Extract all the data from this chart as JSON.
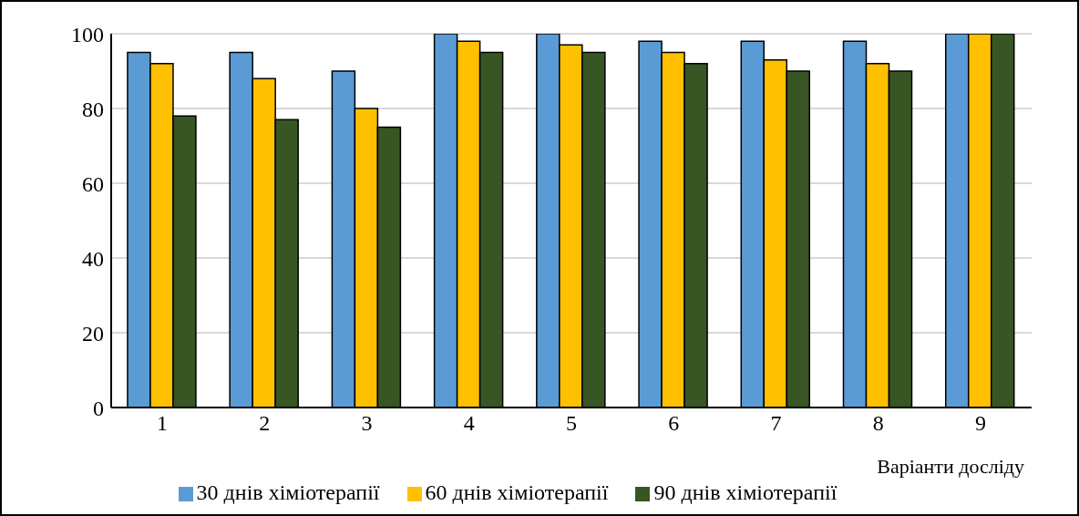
{
  "chart_data": {
    "type": "bar",
    "xlabel": "Варіанти досліду",
    "categories": [
      "1",
      "2",
      "3",
      "4",
      "5",
      "6",
      "7",
      "8",
      "9"
    ],
    "series": [
      {
        "name": "30 днів хіміотерапії",
        "color": "#5b9bd5",
        "values": [
          95,
          95,
          90,
          100,
          100,
          98,
          98,
          98,
          100
        ]
      },
      {
        "name": "60 днів хіміотерапії",
        "color": "#ffc000",
        "values": [
          92,
          88,
          80,
          98,
          97,
          95,
          93,
          92,
          100
        ]
      },
      {
        "name": "90 днів хіміотерапії",
        "color": "#375623",
        "values": [
          78,
          77,
          75,
          95,
          95,
          92,
          90,
          90,
          100
        ]
      }
    ],
    "ylim": [
      0,
      100
    ],
    "yticks": [
      0,
      20,
      40,
      60,
      80,
      100
    ],
    "grid": "y",
    "legend": "bottom"
  }
}
